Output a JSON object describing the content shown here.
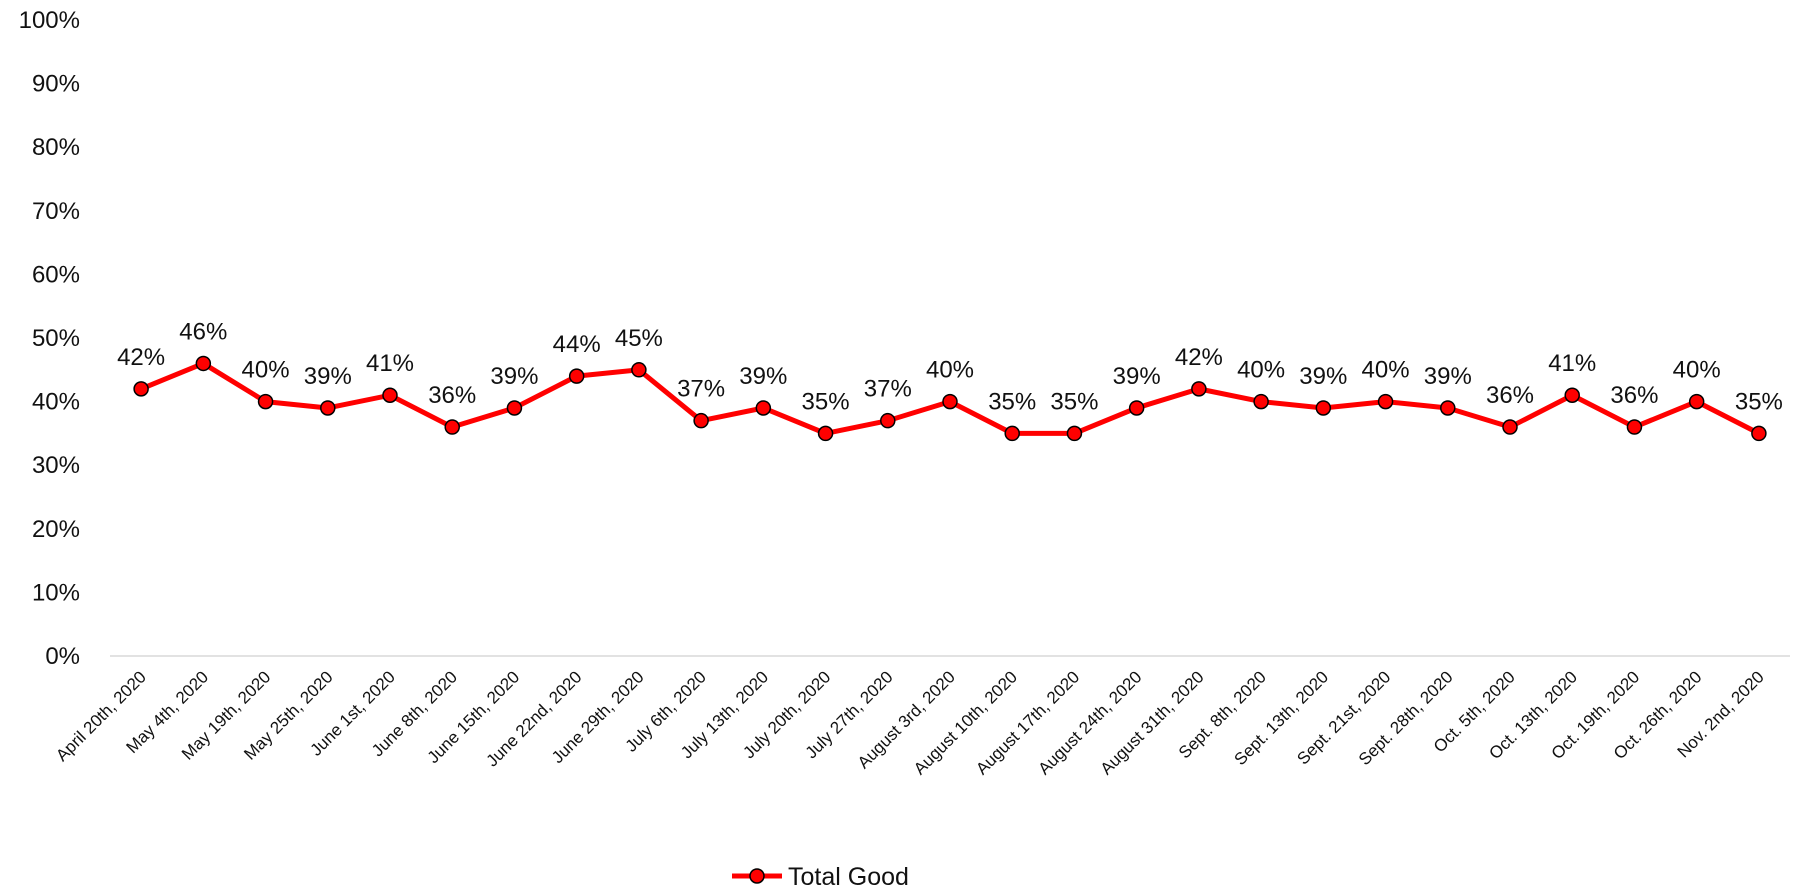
{
  "chart_data": {
    "type": "line",
    "title": "",
    "xlabel": "",
    "ylabel": "",
    "ylim": [
      0,
      100
    ],
    "y_ticks": [
      "0%",
      "10%",
      "20%",
      "30%",
      "40%",
      "50%",
      "60%",
      "70%",
      "80%",
      "90%",
      "100%"
    ],
    "grid": false,
    "legend_position": "bottom",
    "categories": [
      "April 20th, 2020",
      "May 4th, 2020",
      "May 19th, 2020",
      "May 25th, 2020",
      "June 1st, 2020",
      "June 8th, 2020",
      "June 15th, 2020",
      "June 22nd, 2020",
      "June 29th, 2020",
      "July 6th, 2020",
      "July 13th, 2020",
      "July 20th, 2020",
      "July 27th, 2020",
      "August 3rd, 2020",
      "August 10th, 2020",
      "August 17th, 2020",
      "August 24th, 2020",
      "August 31th, 2020",
      "Sept. 8th, 2020",
      "Sept. 13th, 2020",
      "Sept. 21st, 2020",
      "Sept. 28th, 2020",
      "Oct. 5th, 2020",
      "Oct. 13th, 2020",
      "Oct. 19th, 2020",
      "Oct. 26th, 2020",
      "Nov. 2nd, 2020"
    ],
    "series": [
      {
        "name": "Total Good",
        "color": "#ff0000",
        "values": [
          42,
          46,
          40,
          39,
          41,
          36,
          39,
          44,
          45,
          37,
          39,
          35,
          37,
          40,
          35,
          35,
          39,
          42,
          40,
          39,
          40,
          39,
          36,
          41,
          36,
          40,
          35
        ],
        "labels": [
          "42%",
          "46%",
          "40%",
          "39%",
          "41%",
          "36%",
          "39%",
          "44%",
          "45%",
          "37%",
          "39%",
          "35%",
          "37%",
          "40%",
          "35%",
          "35%",
          "39%",
          "42%",
          "40%",
          "39%",
          "40%",
          "39%",
          "36%",
          "41%",
          "36%",
          "40%",
          "35%"
        ]
      }
    ]
  }
}
